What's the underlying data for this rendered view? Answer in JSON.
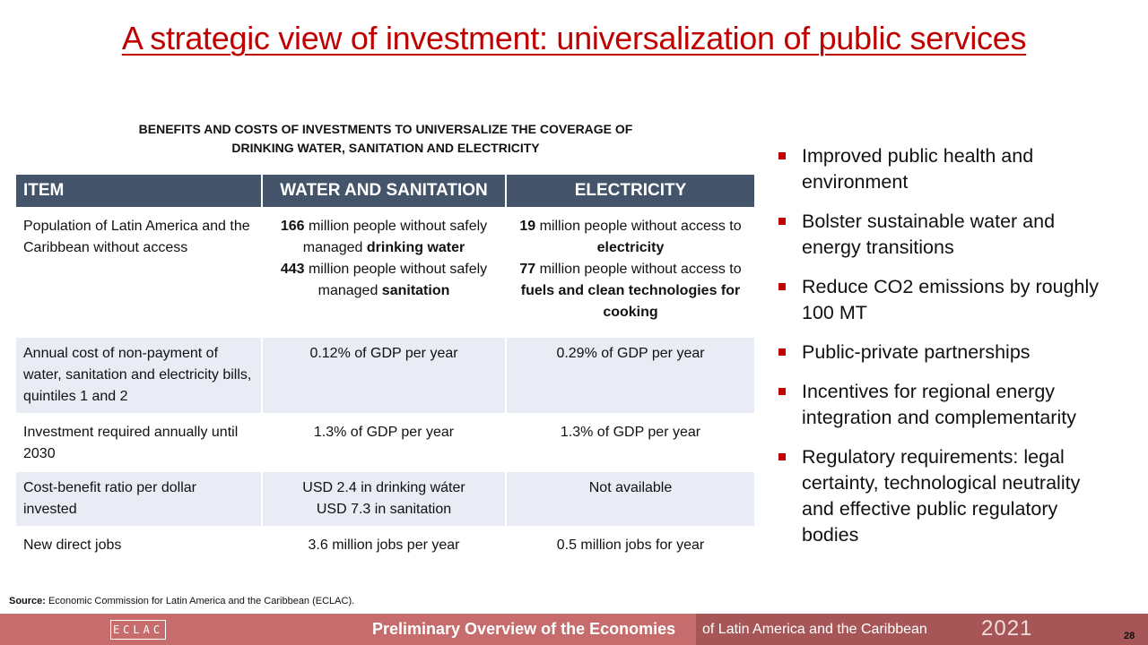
{
  "slide": {
    "title": "A strategic view of investment: universalization of public services",
    "page_number": "28"
  },
  "table": {
    "heading_line1": "BENEFITS AND COSTS OF INVESTMENTS TO UNIVERSALIZE THE COVERAGE OF",
    "heading_line2": "DRINKING WATER, SANITATION AND ELECTRICITY",
    "columns": [
      "ITEM",
      "WATER AND SANITATION",
      "ELECTRICITY"
    ],
    "rows": [
      {
        "item": "Population of Latin America and the Caribbean without access",
        "water": {
          "l1_num": "166",
          "l1_text": " million people without safely managed ",
          "l1_bold": "drinking water",
          "l2_num": "443",
          "l2_text": " million people without safely managed ",
          "l2_bold": "sanitation"
        },
        "electricity": {
          "l1_num": "19",
          "l1_text": " million people without access to ",
          "l1_bold": "electricity",
          "l2_num": "77",
          "l2_text": " million people without access to ",
          "l2_bold": "fuels and clean technologies for cooking"
        }
      },
      {
        "item": "Annual cost of non-payment of water, sanitation and electricity bills, quintiles 1 and 2",
        "water": "0.12% of GDP per year",
        "electricity": "0.29% of GDP per year"
      },
      {
        "item": "Investment required annually until 2030",
        "water": "1.3% of GDP per year",
        "electricity": "1.3% of GDP per year"
      },
      {
        "item": "Cost-benefit ratio per dollar invested",
        "water_l1": "USD 2.4 in drinking wáter",
        "water_l2": "USD 7.3 in sanitation",
        "electricity": "Not available"
      },
      {
        "item": "New direct jobs",
        "water": "3.6 million jobs per year",
        "electricity": "0.5 million jobs for year"
      }
    ]
  },
  "bullets": [
    "Improved public health and environment",
    "Bolster sustainable water and energy transitions",
    "Reduce CO2 emissions by roughly 100 MT",
    "Public-private partnerships",
    "Incentives for regional energy integration and complementarity",
    "Regulatory requirements: legal certainty, technological neutrality and effective public regulatory bodies"
  ],
  "source": {
    "label": "Source:",
    "text": " Economic Commission for Latin America and the Caribbean (ECLAC)."
  },
  "footer": {
    "logo_text": "ECLAC",
    "text_bold": "Preliminary Overview of the Economies",
    "text_regular": "of Latin America and the Caribbean",
    "year": "2021"
  },
  "colors": {
    "title": "#c00000",
    "table_header": "#44546a",
    "table_alt_row": "#e9ebf5",
    "bullet": "#c00000",
    "footer_left": "#c76c6c",
    "footer_right": "#a65656"
  }
}
